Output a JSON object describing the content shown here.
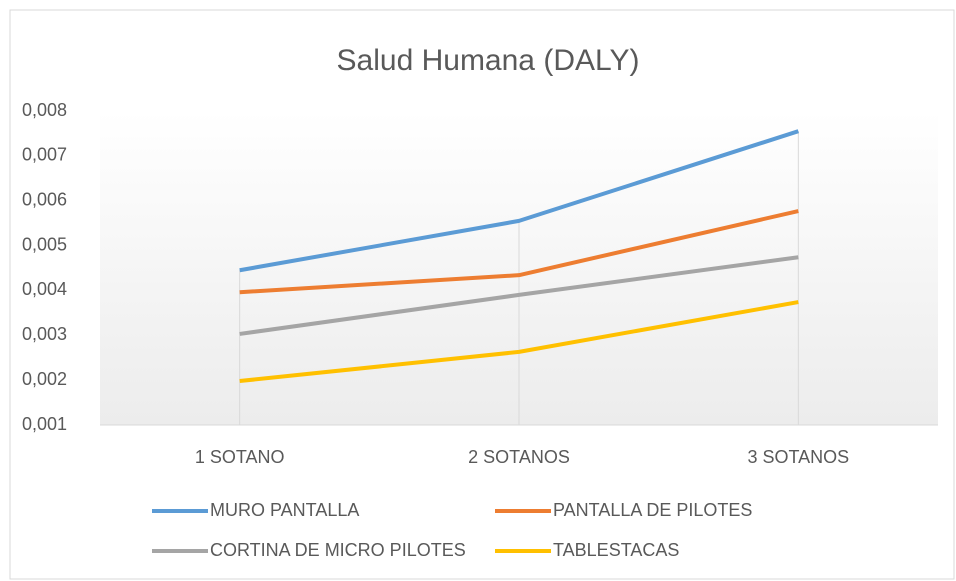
{
  "chart_data": {
    "type": "line",
    "title": "Salud Humana (DALY)",
    "categories": [
      "1 SOTANO",
      "2 SOTANOS",
      "3 SOTANOS"
    ],
    "series": [
      {
        "name": "MURO PANTALLA",
        "color": "#5b9bd5",
        "values": [
          0.00445,
          0.00555,
          0.00755
        ]
      },
      {
        "name": "PANTALLA DE PILOTES",
        "color": "#ed7d31",
        "values": [
          0.00396,
          0.00434,
          0.00577
        ]
      },
      {
        "name": "CORTINA DE MICRO PILOTES",
        "color": "#a5a5a5",
        "values": [
          0.00303,
          0.0039,
          0.00474
        ]
      },
      {
        "name": "TABLESTACAS",
        "color": "#ffc000",
        "values": [
          0.00198,
          0.00263,
          0.00374
        ]
      }
    ],
    "ylim": [
      0.001,
      0.008
    ],
    "yticks": [
      {
        "value": 0.001,
        "label": "0,001"
      },
      {
        "value": 0.002,
        "label": "0,002"
      },
      {
        "value": 0.003,
        "label": "0,003"
      },
      {
        "value": 0.004,
        "label": "0,004"
      },
      {
        "value": 0.005,
        "label": "0,005"
      },
      {
        "value": 0.006,
        "label": "0,006"
      },
      {
        "value": 0.007,
        "label": "0,007"
      },
      {
        "value": 0.008,
        "label": "0,008"
      }
    ],
    "legend": "bottom"
  }
}
